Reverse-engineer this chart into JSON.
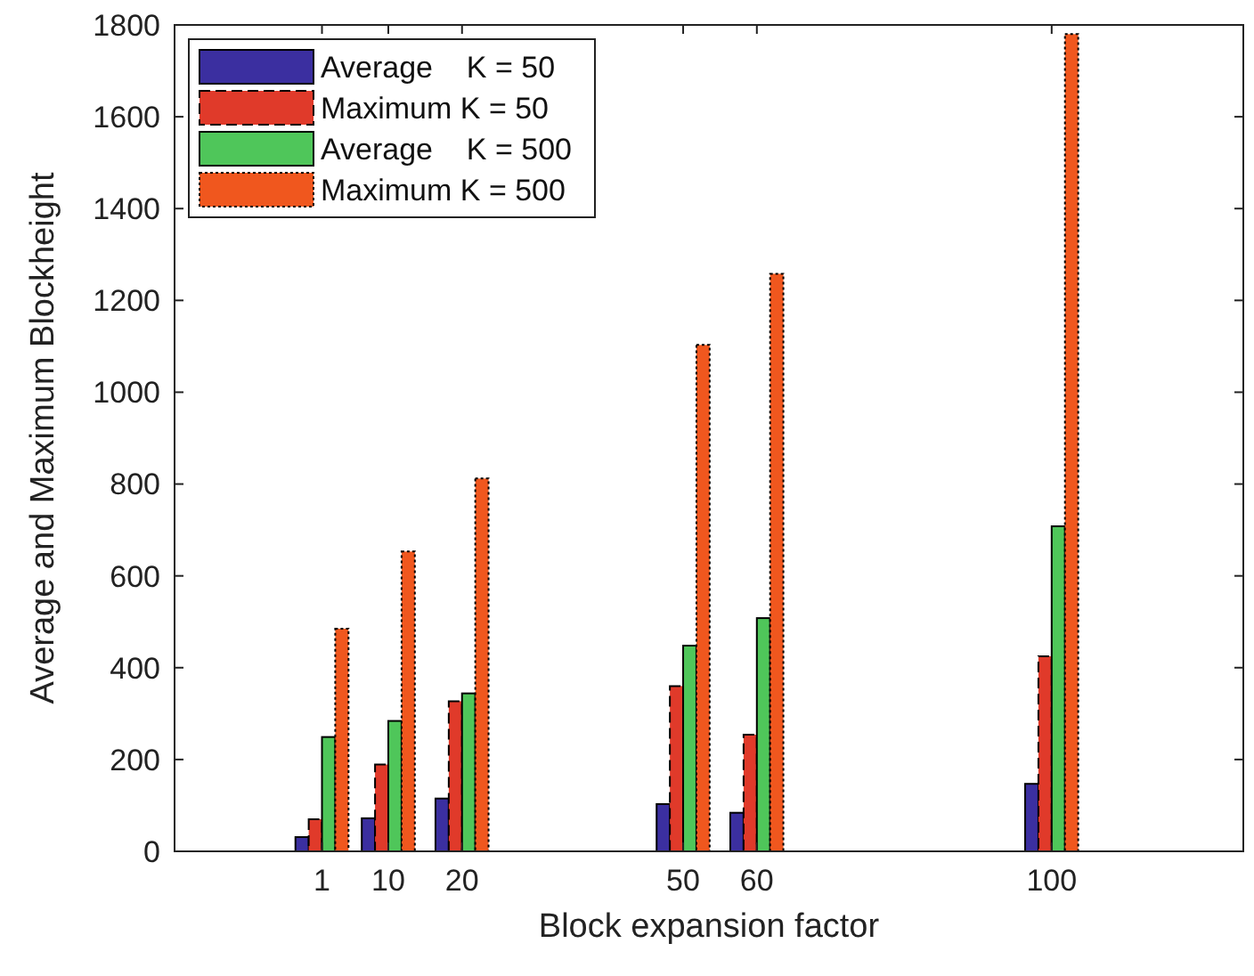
{
  "chart_data": {
    "type": "bar",
    "xlabel": "Block expansion factor",
    "ylabel": "Average and Maximum Blockheight",
    "x": [
      1,
      10,
      20,
      50,
      60,
      100
    ],
    "series": [
      {
        "name": "Average    K = 50",
        "color": "#3b2fa0",
        "line_style": "solid",
        "values": [
          31,
          72,
          115,
          103,
          84,
          147
        ]
      },
      {
        "name": "Maximum K = 50",
        "color": "#e03a2a",
        "line_style": "dashed",
        "values": [
          70,
          189,
          327,
          360,
          254,
          425
        ]
      },
      {
        "name": "Average    K = 500",
        "color": "#4fc65a",
        "line_style": "solid",
        "values": [
          249,
          284,
          344,
          448,
          508,
          708
        ]
      },
      {
        "name": "Maximum K = 500",
        "color": "#f0571e",
        "line_style": "dotted",
        "values": [
          485,
          653,
          812,
          1103,
          1258,
          1780
        ]
      }
    ],
    "xlim": [
      -19,
      126
    ],
    "xticks": [
      1,
      10,
      20,
      50,
      60,
      100
    ],
    "ylim": [
      0,
      1800
    ],
    "yticks": [
      0,
      200,
      400,
      600,
      800,
      1000,
      1200,
      1400,
      1600,
      1800
    ],
    "legend": "top left"
  }
}
